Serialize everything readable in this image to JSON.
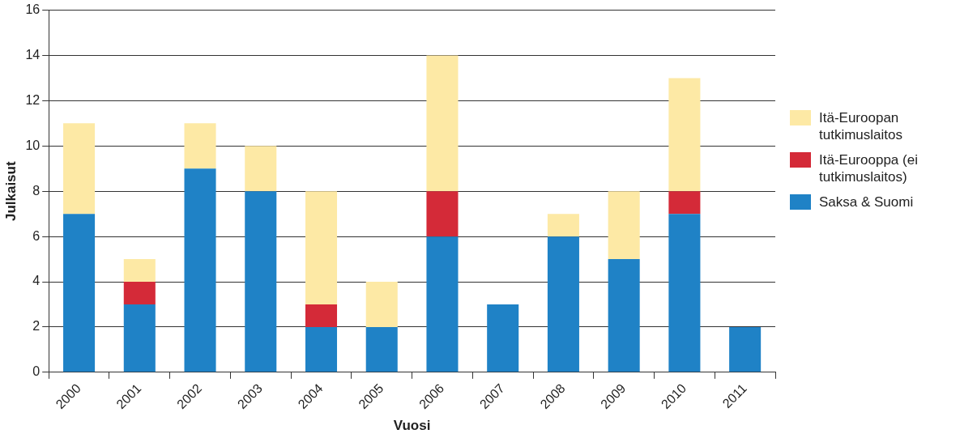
{
  "chart_data": {
    "type": "bar",
    "stacked": true,
    "xlabel": "Vuosi",
    "ylabel": "Julkaisut",
    "categories": [
      "2000",
      "2001",
      "2002",
      "2003",
      "2004",
      "2005",
      "2006",
      "2007",
      "2008",
      "2009",
      "2010",
      "2011"
    ],
    "series": [
      {
        "name": "Saksa & Suomi",
        "color": "#1f82c6",
        "values": [
          7,
          3,
          9,
          8,
          2,
          2,
          6,
          3,
          6,
          5,
          7,
          2
        ]
      },
      {
        "name": "Itä-Eurooppa (ei tutkimuslaitos)",
        "color": "#d42a38",
        "values": [
          0,
          1,
          0,
          0,
          1,
          0,
          2,
          0,
          0,
          0,
          1,
          0
        ]
      },
      {
        "name": "Itä-Euroopan tutkimuslaitos",
        "color": "#fde9a5",
        "values": [
          4,
          1,
          2,
          2,
          5,
          2,
          6,
          0,
          1,
          3,
          5,
          0
        ]
      }
    ],
    "ylim": [
      0,
      16
    ],
    "yticks": [
      0,
      2,
      4,
      6,
      8,
      10,
      12,
      14,
      16
    ],
    "grid": "y",
    "legend": "right"
  }
}
